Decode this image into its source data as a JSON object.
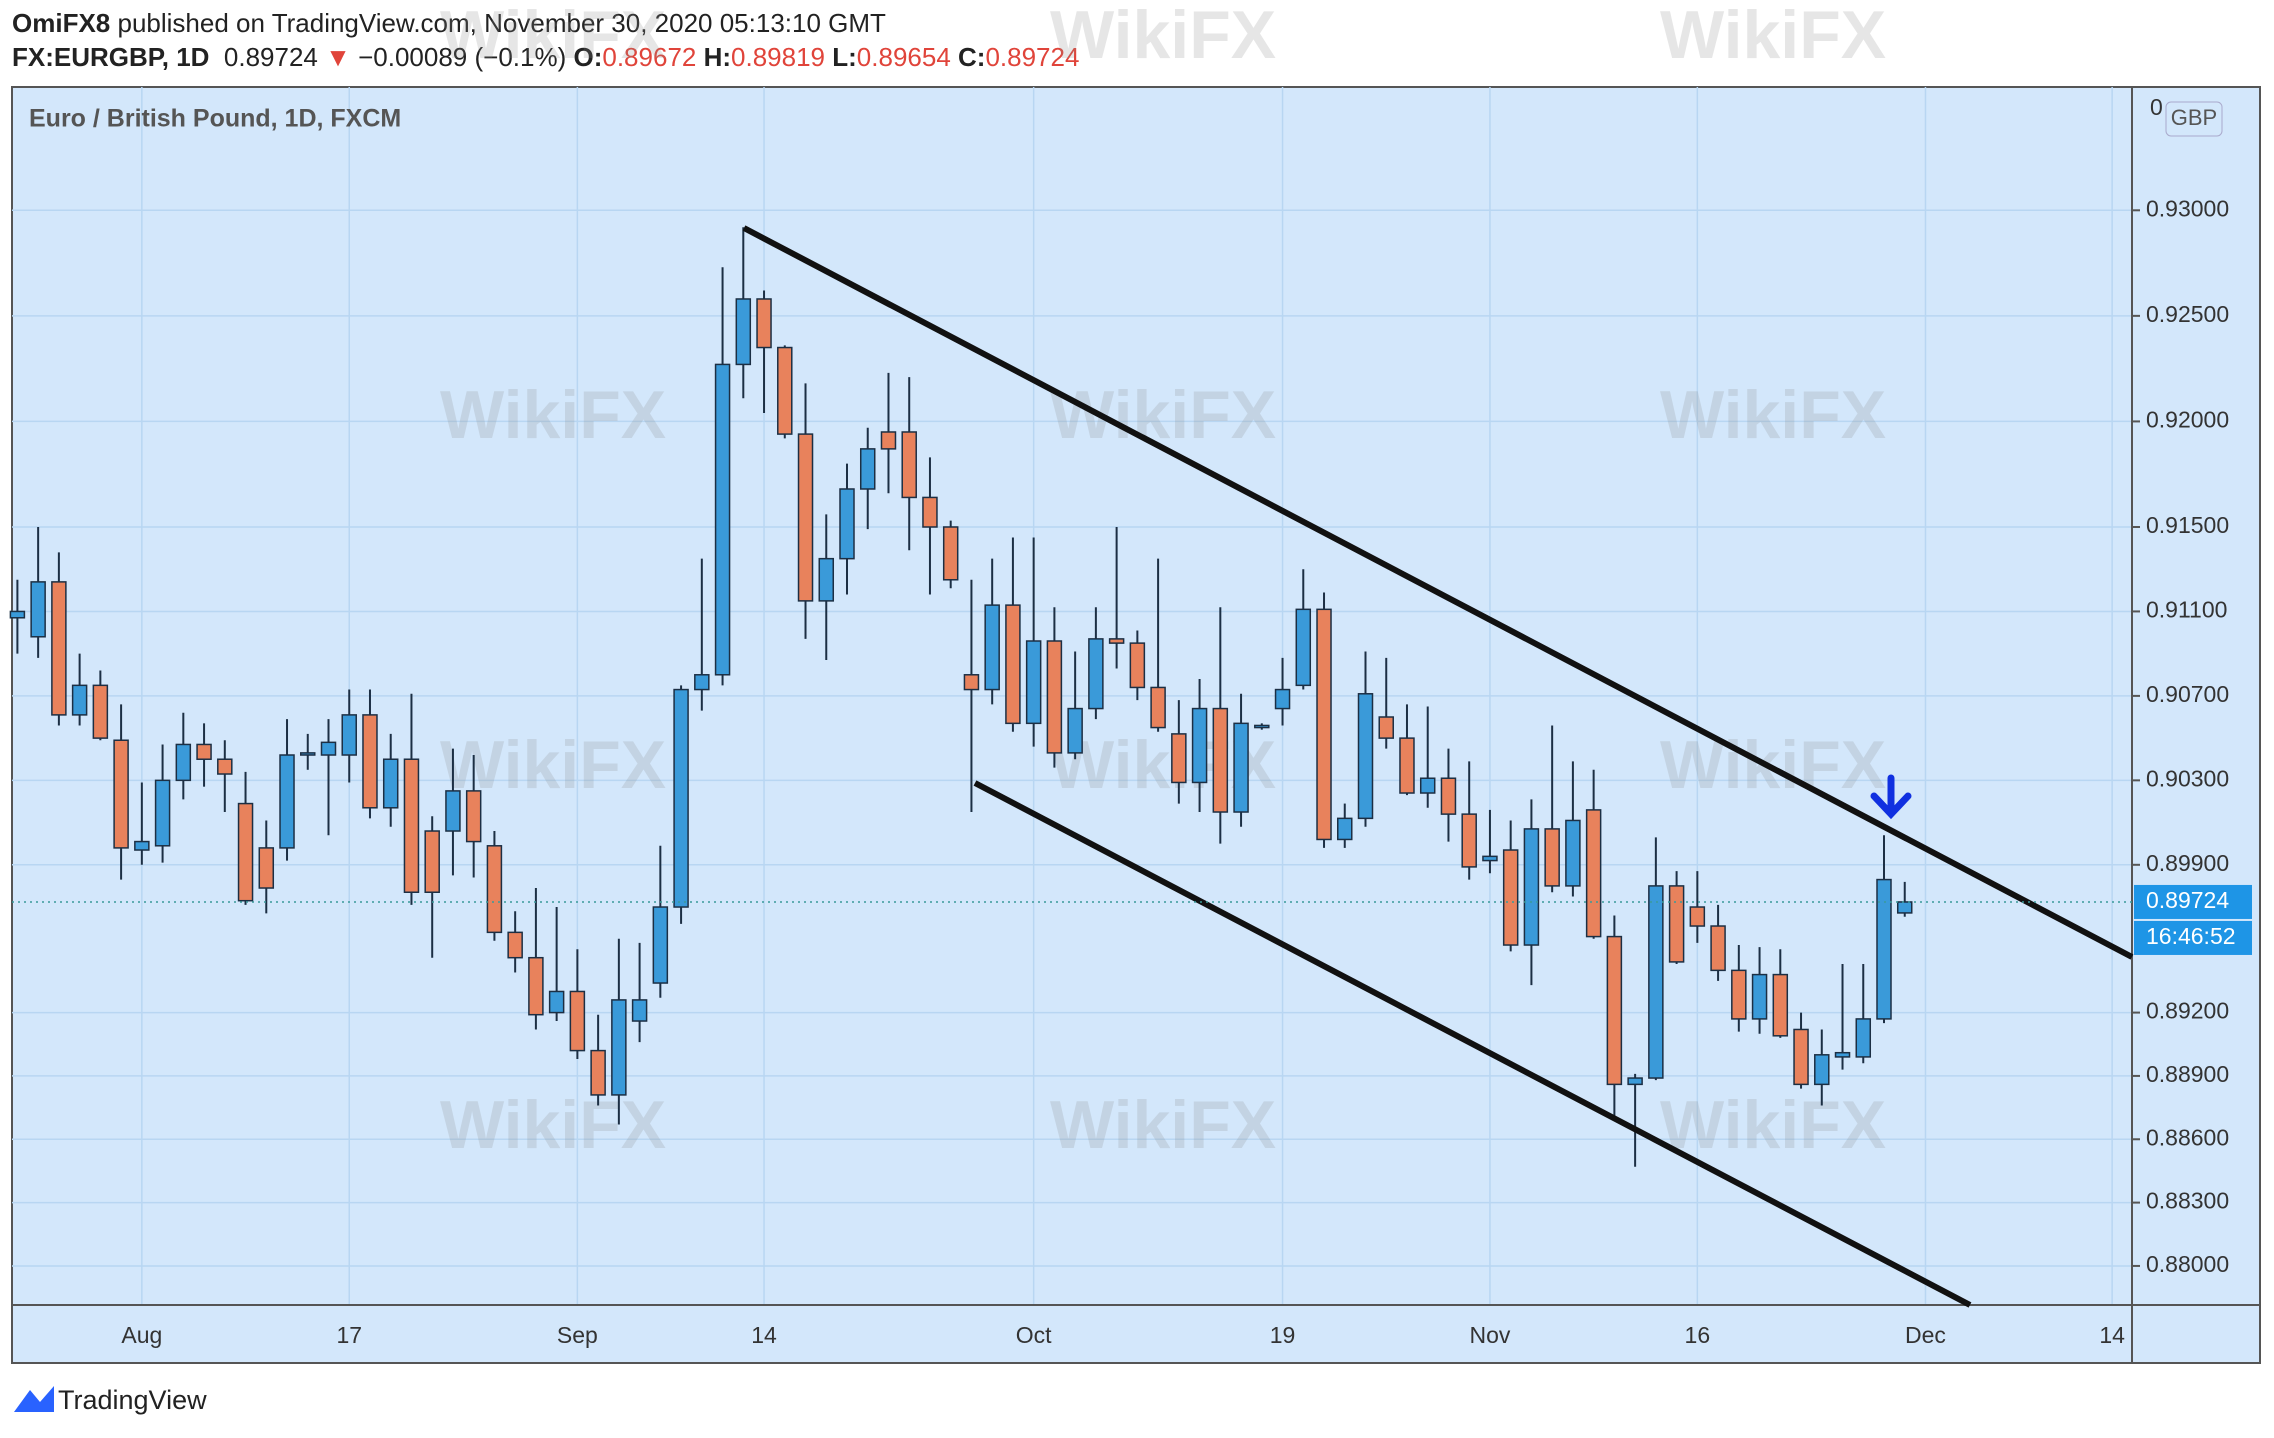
{
  "header": {
    "author": "OmiFX8",
    "published": "published on TradingView.com, November 30, 2020 05:13:10 GMT",
    "symbol": "FX:EURGBP, 1D",
    "price": "0.89724",
    "arrow": "▼",
    "change": "−0.00089 (−0.1%)",
    "o_label": "O:",
    "open": "0.89672",
    "h_label": "H:",
    "high": "0.89819",
    "l_label": "L:",
    "low": "0.89654",
    "c_label": "C:",
    "close": "0.89724"
  },
  "footer": {
    "brand": "TradingView"
  },
  "watermark": "WikiFX",
  "chart_data": {
    "type": "candlestick",
    "title": "Euro / British Pound, 1D, FXCM",
    "currency": "GBP",
    "cropped_tick_label": "0",
    "countdown": "16:46:52",
    "up_color": "#3a9ad9",
    "down_color": "#e8825c",
    "wick_color": "#1c2f44",
    "grid": true,
    "categories": [
      null,
      null,
      null,
      null,
      null,
      null,
      "Aug",
      null,
      null,
      null,
      null,
      null,
      null,
      null,
      null,
      null,
      "17",
      null,
      null,
      null,
      null,
      null,
      null,
      null,
      null,
      null,
      null,
      "Sep",
      null,
      null,
      null,
      null,
      null,
      null,
      null,
      null,
      "14",
      null,
      null,
      null,
      null,
      null,
      null,
      null,
      null,
      null,
      null,
      null,
      null,
      "Oct",
      null,
      null,
      null,
      null,
      null,
      null,
      null,
      null,
      null,
      null,
      null,
      "19",
      null,
      null,
      null,
      null,
      null,
      null,
      null,
      null,
      null,
      "Nov",
      null,
      null,
      null,
      null,
      null,
      null,
      null,
      null,
      null,
      "16",
      null,
      null,
      null,
      null,
      null,
      null,
      null,
      null,
      null,
      null,
      "Dec",
      null,
      null,
      null,
      null,
      null,
      null,
      null,
      null,
      "14"
    ],
    "open": [
      0.9107,
      0.9098,
      0.9124,
      0.9061,
      0.9075,
      0.9049,
      0.8997,
      0.8999,
      0.903,
      0.9047,
      0.904,
      0.9019,
      0.8998,
      0.8998,
      0.9042,
      0.9042,
      0.9042,
      0.9061,
      0.9017,
      0.904,
      0.9006,
      0.9006,
      0.9025,
      0.8999,
      0.8958,
      0.8946,
      0.892,
      0.893,
      0.8902,
      0.8881,
      0.8916,
      0.8934,
      0.897,
      0.9073,
      0.908,
      0.9227,
      0.9258,
      0.9235,
      0.9194,
      0.9115,
      0.9135,
      0.9168,
      0.9195,
      0.9195,
      0.9164,
      0.915,
      0.908,
      0.9073,
      0.9113,
      0.9057,
      0.9096,
      0.9043,
      0.9064,
      0.9097,
      0.9095,
      0.9074,
      0.9052,
      0.9029,
      0.9064,
      0.9015,
      0.9055,
      0.9064,
      0.9075,
      0.9111,
      0.9002,
      0.9012,
      0.906,
      0.905,
      0.9024,
      0.9031,
      0.9014,
      0.8992,
      0.8997,
      0.8952,
      0.9007,
      0.898,
      0.9016,
      0.8956,
      0.8886,
      0.8889,
      0.898,
      0.897,
      0.8961,
      0.894,
      0.8917,
      0.8938,
      0.8912,
      0.8886,
      0.8899,
      0.8899,
      0.8917,
      0.89672,
      null,
      null,
      null,
      null,
      null,
      null,
      null,
      null,
      null,
      null
    ],
    "high": [
      0.9125,
      0.915,
      0.9138,
      0.909,
      0.9082,
      0.9066,
      0.9029,
      0.9047,
      0.9062,
      0.9057,
      0.9049,
      0.9034,
      0.9011,
      0.9059,
      0.9052,
      0.9059,
      0.9073,
      0.9073,
      0.9052,
      0.9071,
      0.9013,
      0.9045,
      0.9042,
      0.9006,
      0.8968,
      0.8979,
      0.897,
      0.895,
      0.8919,
      0.8955,
      0.8953,
      0.8999,
      0.9075,
      0.9135,
      0.9273,
      0.9292,
      0.9262,
      0.9236,
      0.9218,
      0.9156,
      0.918,
      0.9197,
      0.9223,
      0.9221,
      0.9183,
      0.9153,
      0.9125,
      0.9135,
      0.9145,
      0.9145,
      0.9112,
      0.9091,
      0.9112,
      0.915,
      0.9101,
      0.9135,
      0.9068,
      0.9078,
      0.9112,
      0.9071,
      0.9057,
      0.9088,
      0.913,
      0.9119,
      0.9019,
      0.9091,
      0.9088,
      0.9066,
      0.9065,
      0.9045,
      0.9039,
      0.9016,
      0.9011,
      0.9021,
      0.9056,
      0.9039,
      0.9035,
      0.8966,
      0.8891,
      0.9003,
      0.8987,
      0.8987,
      0.8971,
      0.8952,
      0.8951,
      0.895,
      0.892,
      0.8912,
      0.8943,
      0.8943,
      0.9004,
      0.89819,
      null,
      null,
      null,
      null,
      null,
      null,
      null,
      null,
      null,
      null
    ],
    "low": [
      0.909,
      0.9088,
      0.9056,
      0.9056,
      0.9049,
      0.8983,
      0.899,
      0.8991,
      0.9021,
      0.9027,
      0.9015,
      0.8971,
      0.8967,
      0.8992,
      0.9035,
      0.9004,
      0.9029,
      0.9012,
      0.9008,
      0.8971,
      0.8946,
      0.8985,
      0.8984,
      0.8954,
      0.8939,
      0.8912,
      0.8916,
      0.8898,
      0.8876,
      0.8867,
      0.8906,
      0.8927,
      0.8962,
      0.9063,
      0.9075,
      0.9211,
      0.9204,
      0.9192,
      0.9097,
      0.9087,
      0.9118,
      0.9149,
      0.9166,
      0.9139,
      0.9118,
      0.9121,
      0.9015,
      0.9066,
      0.9053,
      0.9046,
      0.9036,
      0.904,
      0.9059,
      0.9083,
      0.9068,
      0.9053,
      0.9019,
      0.9015,
      0.9,
      0.9008,
      0.9054,
      0.9056,
      0.9073,
      0.8998,
      0.8998,
      0.9008,
      0.9045,
      0.9023,
      0.9017,
      0.9001,
      0.8983,
      0.8986,
      0.8949,
      0.8933,
      0.8977,
      0.8975,
      0.8955,
      0.8869,
      0.8847,
      0.8888,
      0.8943,
      0.8953,
      0.8935,
      0.8911,
      0.891,
      0.8908,
      0.8884,
      0.8876,
      0.8893,
      0.8896,
      0.8915,
      0.89654,
      null,
      null,
      null,
      null,
      null,
      null,
      null,
      null,
      null,
      null
    ],
    "close": [
      0.911,
      0.9124,
      0.9061,
      0.9075,
      0.905,
      0.8998,
      0.9001,
      0.903,
      0.9047,
      0.904,
      0.9033,
      0.8973,
      0.8979,
      0.9042,
      0.9043,
      0.9048,
      0.9061,
      0.9017,
      0.904,
      0.8977,
      0.8977,
      0.9025,
      0.9001,
      0.8958,
      0.8946,
      0.8919,
      0.893,
      0.8902,
      0.8881,
      0.8926,
      0.8926,
      0.897,
      0.9073,
      0.908,
      0.9227,
      0.9258,
      0.9235,
      0.9194,
      0.9115,
      0.9135,
      0.9168,
      0.9187,
      0.9187,
      0.9164,
      0.915,
      0.9125,
      0.9073,
      0.9113,
      0.9057,
      0.9096,
      0.9043,
      0.9064,
      0.9097,
      0.9095,
      0.9074,
      0.9055,
      0.9029,
      0.9064,
      0.9015,
      0.9057,
      0.9056,
      0.9073,
      0.9111,
      0.9002,
      0.9012,
      0.9071,
      0.905,
      0.9024,
      0.9031,
      0.9014,
      0.8989,
      0.8994,
      0.8952,
      0.9007,
      0.898,
      0.9011,
      0.8956,
      0.8886,
      0.8889,
      0.898,
      0.8944,
      0.8961,
      0.894,
      0.8917,
      0.8938,
      0.8909,
      0.8886,
      0.89,
      0.8901,
      0.8917,
      0.8983,
      0.89724,
      null,
      null,
      null,
      null,
      null,
      null,
      null,
      null,
      null,
      null
    ],
    "last_price": 0.89724,
    "ylim": [
      0.87815,
      0.93584
    ],
    "yticks": [
      {
        "value": 0.93,
        "label": "0.93000"
      },
      {
        "value": 0.925,
        "label": "0.92500"
      },
      {
        "value": 0.92,
        "label": "0.92000"
      },
      {
        "value": 0.915,
        "label": "0.91500"
      },
      {
        "value": 0.911,
        "label": "0.91100"
      },
      {
        "value": 0.907,
        "label": "0.90700"
      },
      {
        "value": 0.903,
        "label": "0.90300"
      },
      {
        "value": 0.899,
        "label": "0.89900"
      },
      {
        "value": 0.892,
        "label": "0.89200"
      },
      {
        "value": 0.889,
        "label": "0.88900"
      },
      {
        "value": 0.886,
        "label": "0.88600"
      },
      {
        "value": 0.883,
        "label": "0.88300"
      },
      {
        "value": 0.88,
        "label": "0.88000"
      }
    ]
  }
}
